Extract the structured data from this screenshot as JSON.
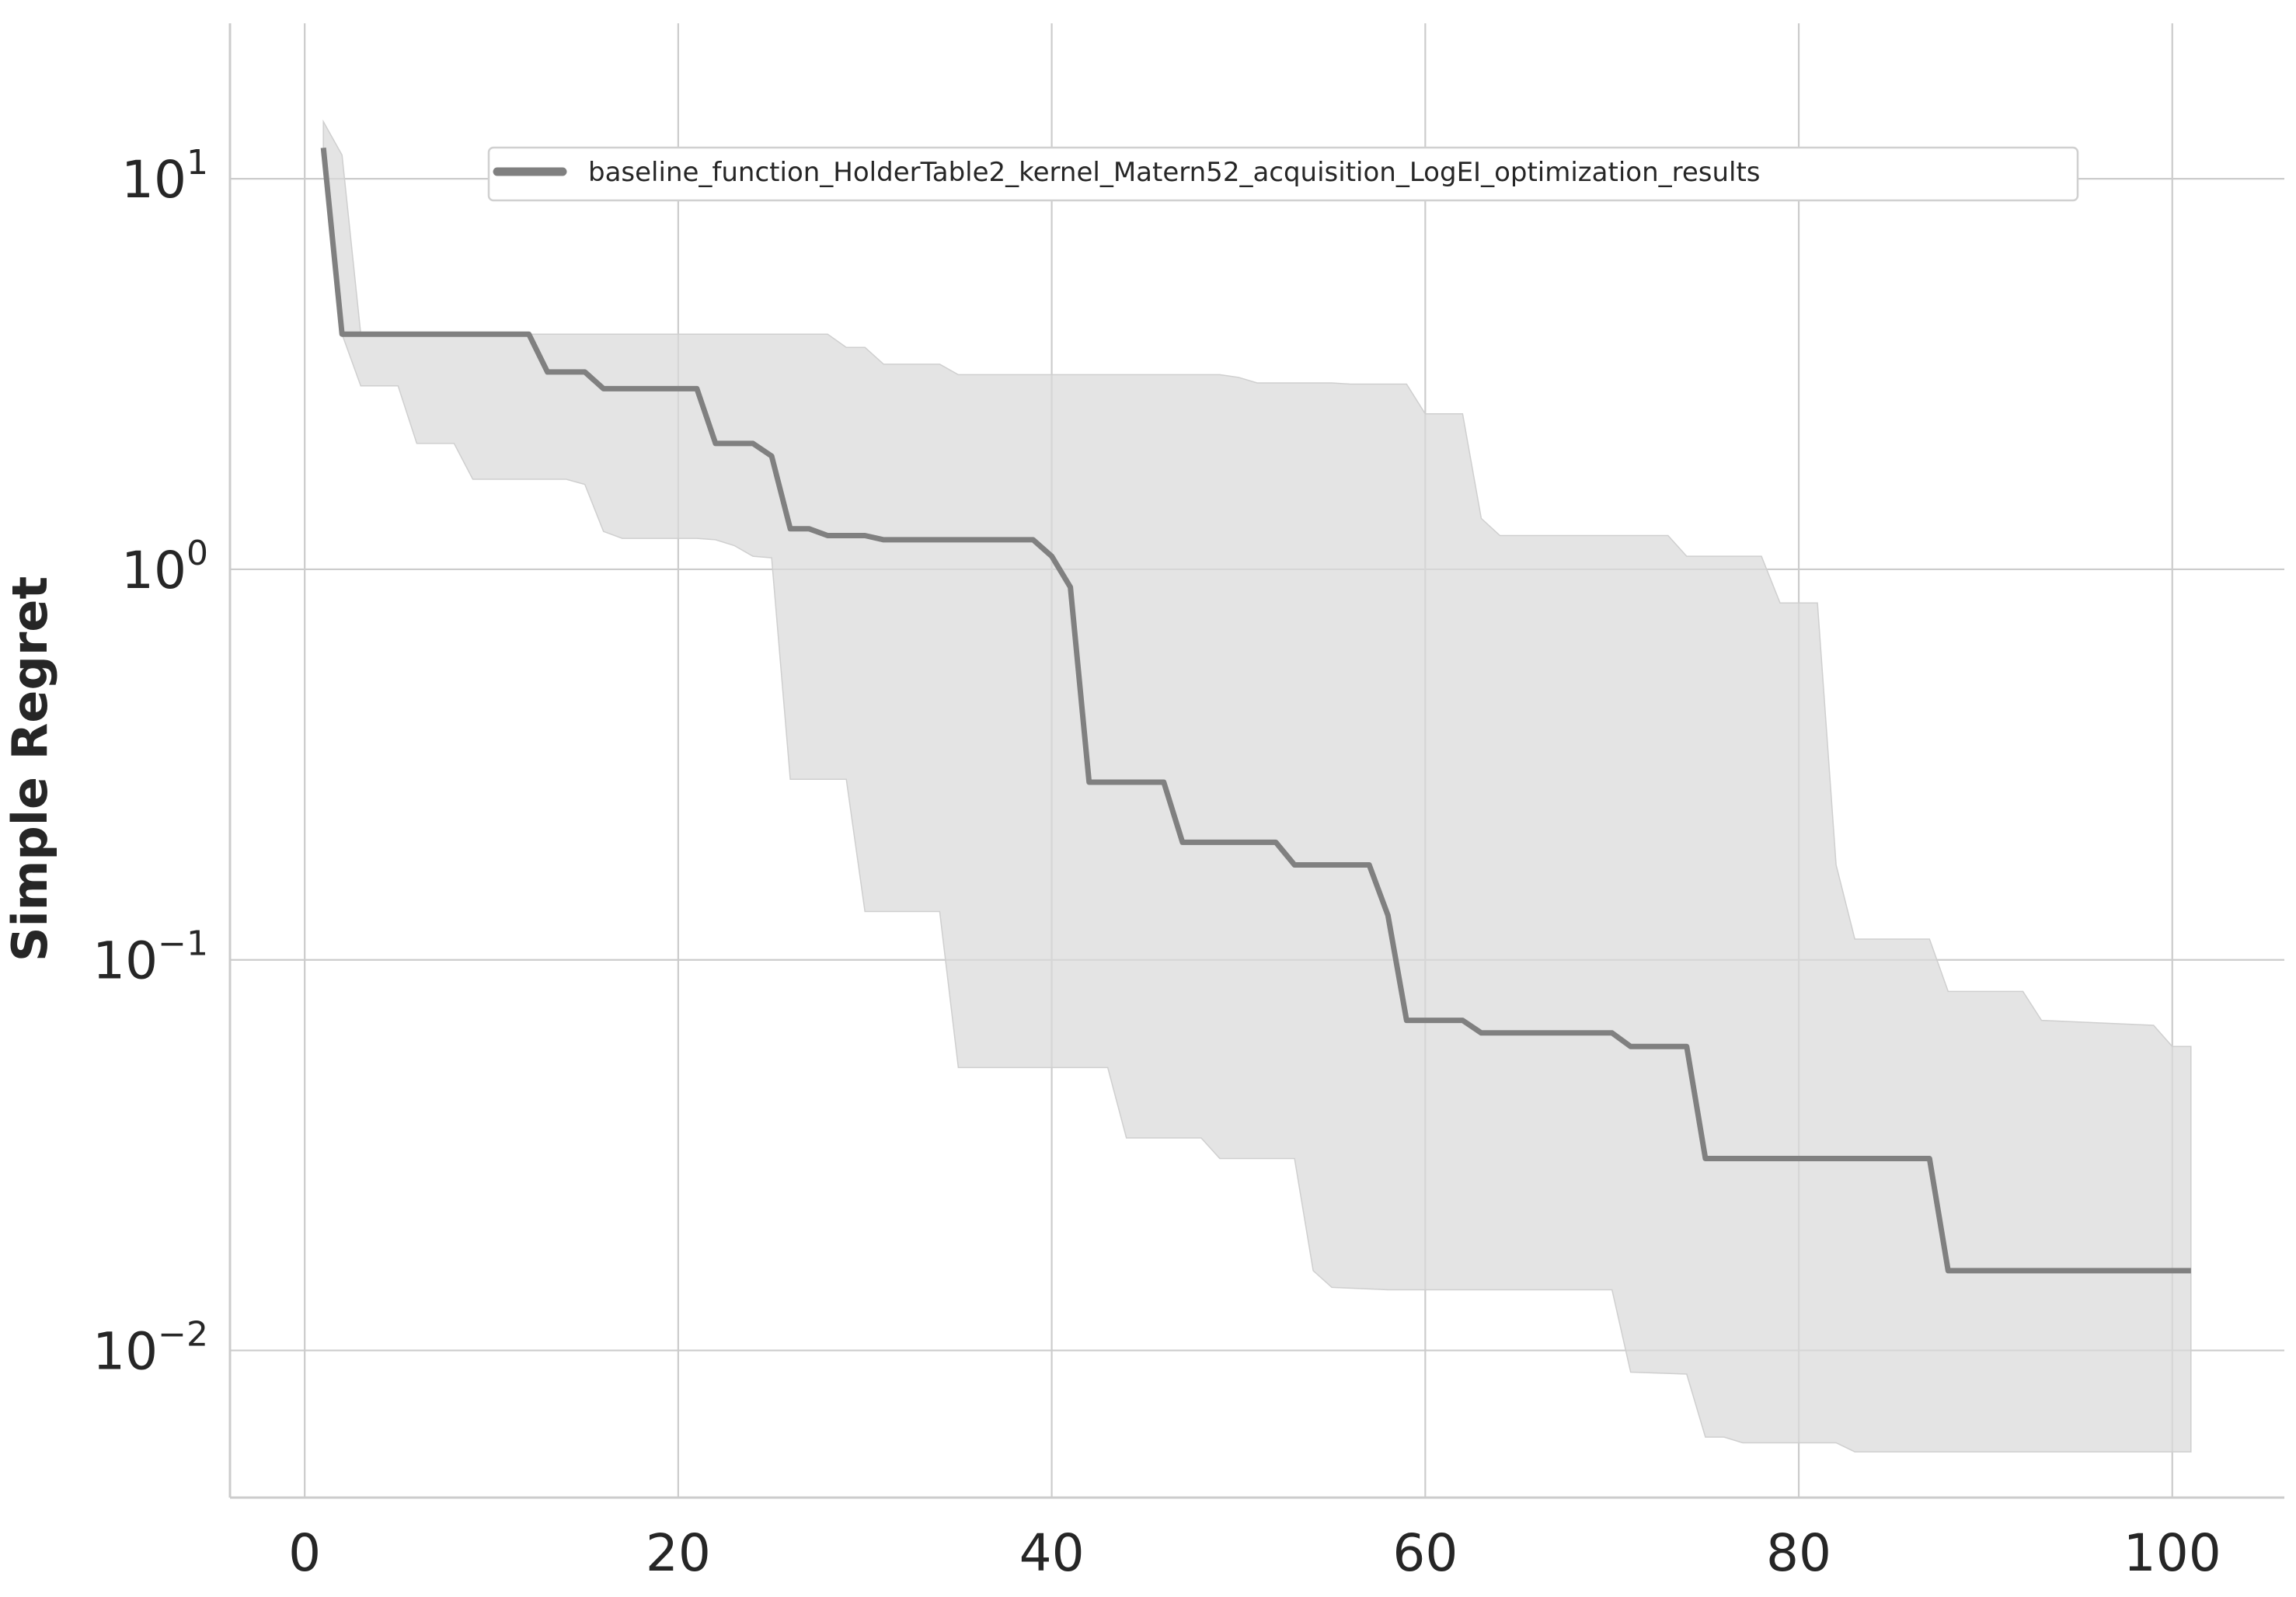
{
  "chart_data": {
    "type": "line",
    "title": "",
    "xlabel": "",
    "ylabel": "Simple Regret",
    "yscale": "log",
    "xlim": [
      -4,
      106
    ],
    "ylim": [
      0.0042,
      25
    ],
    "x_ticks": [
      {
        "value": 0,
        "label": "0"
      },
      {
        "value": 20,
        "label": "20"
      },
      {
        "value": 40,
        "label": "40"
      },
      {
        "value": 60,
        "label": "60"
      },
      {
        "value": 80,
        "label": "80"
      },
      {
        "value": 100,
        "label": "100"
      }
    ],
    "y_ticks": [
      {
        "value": 10,
        "base": "10",
        "exp": "1"
      },
      {
        "value": 1,
        "base": "10",
        "exp": "0"
      },
      {
        "value": 0.1,
        "base": "10",
        "exp": "−1"
      },
      {
        "value": 0.01,
        "base": "10",
        "exp": "−2"
      }
    ],
    "grid": true,
    "legend_position": "upper-center",
    "colors": {
      "line": "#808080",
      "band": "#d9d9d9",
      "grid": "#cccccc"
    },
    "series": [
      {
        "name": "baseline_function_HolderTable2_kernel_Matern52_acquisition_LogEI_optimization_results",
        "line": [
          [
            1,
            12.0
          ],
          [
            2,
            4.0
          ],
          [
            12,
            4.0
          ],
          [
            13,
            3.2
          ],
          [
            15,
            3.2
          ],
          [
            16,
            2.9
          ],
          [
            21,
            2.9
          ],
          [
            22,
            2.1
          ],
          [
            24,
            2.1
          ],
          [
            25,
            1.95
          ],
          [
            26,
            1.27
          ],
          [
            27,
            1.27
          ],
          [
            28,
            1.22
          ],
          [
            29,
            1.22
          ],
          [
            30,
            1.22
          ],
          [
            31,
            1.19
          ],
          [
            39,
            1.19
          ],
          [
            40,
            1.08
          ],
          [
            41,
            0.9
          ],
          [
            42,
            0.285
          ],
          [
            46,
            0.285
          ],
          [
            47,
            0.2
          ],
          [
            52,
            0.2
          ],
          [
            53,
            0.175
          ],
          [
            57,
            0.175
          ],
          [
            58,
            0.13
          ],
          [
            59,
            0.07
          ],
          [
            62,
            0.07
          ],
          [
            63,
            0.065
          ],
          [
            70,
            0.065
          ],
          [
            71,
            0.06
          ],
          [
            74,
            0.06
          ],
          [
            75,
            0.031
          ],
          [
            87,
            0.031
          ],
          [
            88,
            0.016
          ],
          [
            101,
            0.016
          ]
        ],
        "band_upper": [
          [
            1,
            14.0
          ],
          [
            2,
            11.5
          ],
          [
            3,
            4.0
          ],
          [
            28,
            4.0
          ],
          [
            29,
            3.7
          ],
          [
            30,
            3.7
          ],
          [
            31,
            3.35
          ],
          [
            34,
            3.35
          ],
          [
            35,
            3.15
          ],
          [
            49,
            3.15
          ],
          [
            50,
            3.1
          ],
          [
            51,
            3.0
          ],
          [
            55,
            3.0
          ],
          [
            56,
            2.98
          ],
          [
            59,
            2.98
          ],
          [
            60,
            2.5
          ],
          [
            62,
            2.5
          ],
          [
            63,
            1.35
          ],
          [
            64,
            1.22
          ],
          [
            73,
            1.22
          ],
          [
            74,
            1.08
          ],
          [
            78,
            1.08
          ],
          [
            79,
            0.82
          ],
          [
            81,
            0.82
          ],
          [
            82,
            0.175
          ],
          [
            83,
            0.113
          ],
          [
            87,
            0.113
          ],
          [
            88,
            0.083
          ],
          [
            92,
            0.083
          ],
          [
            93,
            0.07
          ],
          [
            99,
            0.068
          ],
          [
            100,
            0.06
          ],
          [
            101,
            0.06
          ]
        ],
        "band_lower": [
          [
            1,
            12.0
          ],
          [
            2,
            4.0
          ],
          [
            3,
            2.95
          ],
          [
            5,
            2.95
          ],
          [
            6,
            2.1
          ],
          [
            8,
            2.1
          ],
          [
            9,
            1.7
          ],
          [
            14,
            1.7
          ],
          [
            15,
            1.65
          ],
          [
            16,
            1.25
          ],
          [
            17,
            1.2
          ],
          [
            21,
            1.2
          ],
          [
            22,
            1.19
          ],
          [
            23,
            1.15
          ],
          [
            24,
            1.08
          ],
          [
            25,
            1.07
          ],
          [
            26,
            0.29
          ],
          [
            29,
            0.29
          ],
          [
            30,
            0.133
          ],
          [
            34,
            0.133
          ],
          [
            35,
            0.053
          ],
          [
            43,
            0.053
          ],
          [
            44,
            0.035
          ],
          [
            48,
            0.035
          ],
          [
            49,
            0.031
          ],
          [
            53,
            0.031
          ],
          [
            54,
            0.016
          ],
          [
            55,
            0.0145
          ],
          [
            58,
            0.0143
          ],
          [
            70,
            0.0143
          ],
          [
            71,
            0.0088
          ],
          [
            74,
            0.0087
          ],
          [
            75,
            0.006
          ],
          [
            76,
            0.006
          ],
          [
            77,
            0.0058
          ],
          [
            82,
            0.0058
          ],
          [
            83,
            0.0055
          ],
          [
            101,
            0.0055
          ]
        ]
      }
    ]
  }
}
